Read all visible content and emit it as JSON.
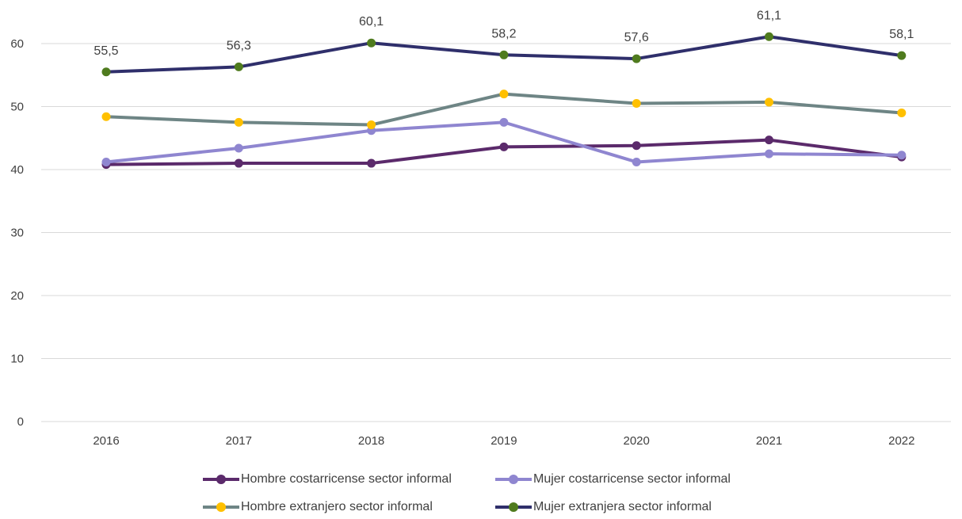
{
  "chart_data": {
    "type": "line",
    "title": "",
    "xlabel": "",
    "ylabel": "",
    "categories": [
      "2016",
      "2017",
      "2018",
      "2019",
      "2020",
      "2021",
      "2022"
    ],
    "ylim": [
      0,
      60
    ],
    "yticks": [
      "0",
      "10",
      "20",
      "30",
      "40",
      "50",
      "60"
    ],
    "grid": "horizontal",
    "legend_position": "bottom",
    "series": [
      {
        "name": "Hombre costarricense sector informal",
        "values": [
          40.8,
          41.0,
          41.0,
          43.6,
          43.8,
          44.7,
          42.0
        ],
        "line_color": "#5b2a6b",
        "marker_color": "#5b2a6b"
      },
      {
        "name": "Mujer costarricense sector informal",
        "values": [
          41.2,
          43.4,
          46.2,
          47.5,
          41.2,
          42.5,
          42.3
        ],
        "line_color": "#8f86d0",
        "marker_color": "#8f86d0"
      },
      {
        "name": "Hombre extranjero sector informal",
        "values": [
          48.4,
          47.5,
          47.1,
          52.0,
          50.5,
          50.7,
          49.0
        ],
        "line_color": "#6e8585",
        "marker_color": "#ffc000"
      },
      {
        "name": "Mujer extranjera sector informal",
        "values": [
          55.5,
          56.3,
          60.1,
          58.2,
          57.6,
          61.1,
          58.1
        ],
        "line_color": "#2f2f6b",
        "marker_color": "#4f7b1e",
        "data_labels": [
          "55,5",
          "56,3",
          "60,1",
          "58,2",
          "57,6",
          "61,1",
          "58,1"
        ]
      }
    ]
  }
}
